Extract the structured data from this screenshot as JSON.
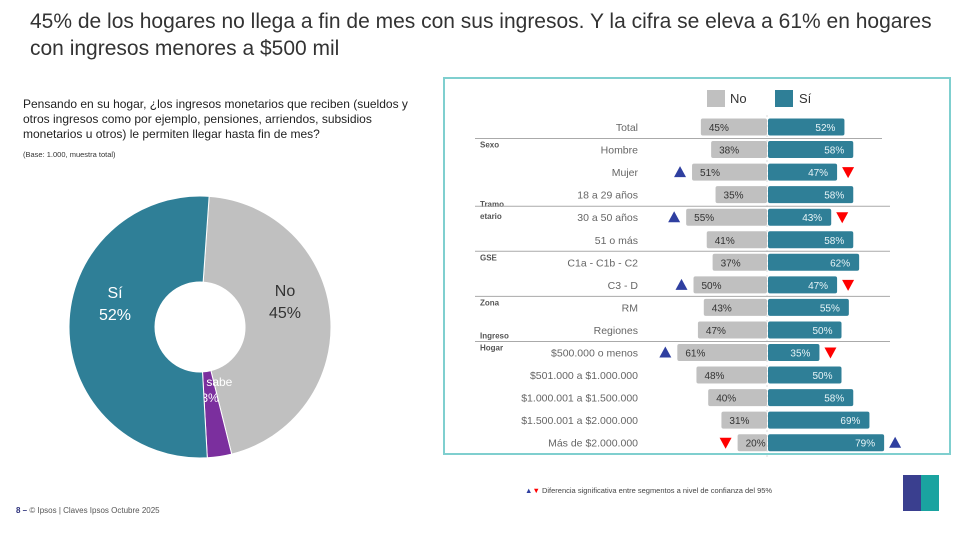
{
  "title": "45% de los hogares no llega a fin de mes con sus ingresos. Y la cifra se eleva a 61% en hogares con ingresos menores a $500 mil",
  "question": "Pensando en su hogar, ¿los ingresos monetarios que reciben (sueldos y otros ingresos como por ejemplo, pensiones, arriendos, subsidios monetarios u otros) le permiten llegar hasta fin de mes?",
  "base": "(Base: 1.000, muestra total)",
  "footer": {
    "page": "8 –",
    "text": "© Ipsos | Claves Ipsos Octubre  2025"
  },
  "note": "Diferencia significativa entre segmentos a nivel de confianza del 95%",
  "logo": "Ipsos",
  "chart_data": [
    {
      "type": "pie",
      "donut": true,
      "slices": [
        {
          "label": "No",
          "value": 45,
          "color": "#c0c0c0"
        },
        {
          "label": "No sabe",
          "value": 3,
          "color": "#7b2f9e"
        },
        {
          "label": "Sí",
          "value": 52,
          "color": "#2f7f97"
        }
      ]
    },
    {
      "type": "bar",
      "orientation": "diverging-horizontal",
      "legend": [
        {
          "name": "No",
          "color": "#c0c0c0"
        },
        {
          "name": "Sí",
          "color": "#2f7f97"
        }
      ],
      "legend_position": "top",
      "rows": [
        {
          "group": "",
          "label": "Total",
          "no": 45,
          "si": 52,
          "no_flag": "",
          "si_flag": ""
        },
        {
          "group": "Sexo",
          "label": "Hombre",
          "no": 38,
          "si": 58,
          "no_flag": "",
          "si_flag": ""
        },
        {
          "group": "",
          "label": "Mujer",
          "no": 51,
          "si": 47,
          "no_flag": "up",
          "si_flag": "down"
        },
        {
          "group": "",
          "label": "18 a 29 años",
          "no": 35,
          "si": 58,
          "no_flag": "",
          "si_flag": ""
        },
        {
          "group": "Tramo etario",
          "label": "30 a 50 años",
          "no": 55,
          "si": 43,
          "no_flag": "up",
          "si_flag": "down"
        },
        {
          "group": "",
          "label": "51 o más",
          "no": 41,
          "si": 58,
          "no_flag": "",
          "si_flag": ""
        },
        {
          "group": "GSE",
          "label": "C1a - C1b - C2",
          "no": 37,
          "si": 62,
          "no_flag": "",
          "si_flag": ""
        },
        {
          "group": "",
          "label": "C3 - D",
          "no": 50,
          "si": 47,
          "no_flag": "up",
          "si_flag": "down"
        },
        {
          "group": "Zona",
          "label": "RM",
          "no": 43,
          "si": 55,
          "no_flag": "",
          "si_flag": ""
        },
        {
          "group": "",
          "label": "Regiones",
          "no": 47,
          "si": 50,
          "no_flag": "",
          "si_flag": ""
        },
        {
          "group": "Ingreso Hogar",
          "label": "$500.000 o menos",
          "no": 61,
          "si": 35,
          "no_flag": "up",
          "si_flag": "down"
        },
        {
          "group": "",
          "label": "$501.000 a $1.000.000",
          "no": 48,
          "si": 50,
          "no_flag": "",
          "si_flag": ""
        },
        {
          "group": "",
          "label": "$1.000.001 a $1.500.000",
          "no": 40,
          "si": 58,
          "no_flag": "",
          "si_flag": ""
        },
        {
          "group": "",
          "label": "$1.500.001 a $2.000.000",
          "no": 31,
          "si": 69,
          "no_flag": "",
          "si_flag": ""
        },
        {
          "group": "",
          "label": "Más de $2.000.000",
          "no": 20,
          "si": 79,
          "no_flag": "down",
          "si_flag": "up"
        }
      ],
      "flag_colors": {
        "up": "#2f3fa0",
        "down": "#ff0000"
      }
    }
  ]
}
